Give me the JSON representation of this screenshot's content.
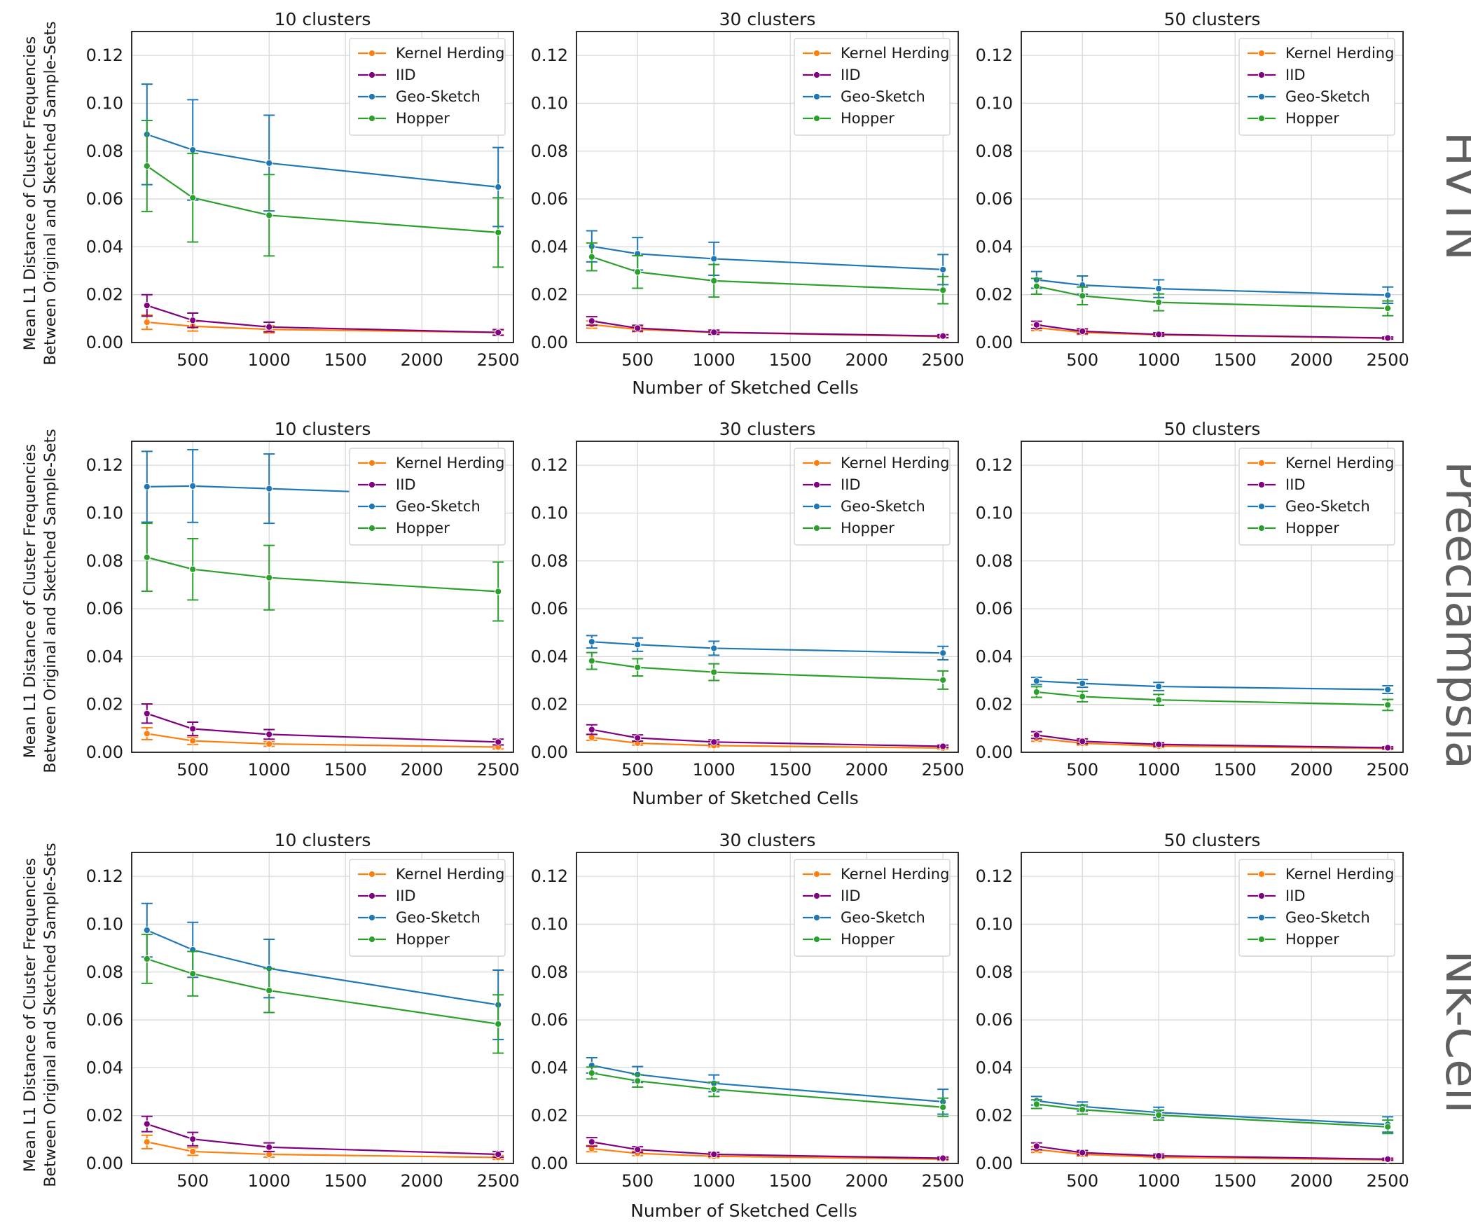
{
  "figure": {
    "y_axis_label_line1": "Mean L1 Distance of Cluster Frequencies",
    "y_axis_label_line2": "Between Original and Sketched Sample-Sets",
    "x_axis_label": "Number of Sketched Cells"
  },
  "colors": {
    "Kernel Herding": "#ff7f0e",
    "IID": "#800080",
    "Geo-Sketch": "#1f77b4",
    "Hopper": "#2ca02c"
  },
  "chart_data": [
    {
      "type": "line",
      "dataset": "HVTN",
      "title": "10 clusters",
      "x": [
        200,
        500,
        1000,
        2500
      ],
      "xticks": [
        500,
        1000,
        1500,
        2000,
        2500
      ],
      "xlim": [
        100,
        2600
      ],
      "ylim": [
        0,
        0.13
      ],
      "yticks": [
        0.0,
        0.02,
        0.04,
        0.06,
        0.08,
        0.1,
        0.12
      ],
      "legend": "top-right",
      "series": [
        {
          "name": "Kernel Herding",
          "values": [
            0.0085,
            0.0068,
            0.0055,
            0.0042
          ],
          "err": [
            0.003,
            0.002,
            0.0015,
            0.001
          ]
        },
        {
          "name": "IID",
          "values": [
            0.0155,
            0.0093,
            0.0065,
            0.0042
          ],
          "err": [
            0.0045,
            0.003,
            0.002,
            0.0012
          ]
        },
        {
          "name": "Geo-Sketch",
          "values": [
            0.087,
            0.0805,
            0.075,
            0.065
          ],
          "err": [
            0.021,
            0.021,
            0.02,
            0.0165
          ]
        },
        {
          "name": "Hopper",
          "values": [
            0.0738,
            0.0605,
            0.0532,
            0.046
          ],
          "err": [
            0.019,
            0.0185,
            0.017,
            0.0145
          ]
        }
      ]
    },
    {
      "type": "line",
      "dataset": "HVTN",
      "title": "30 clusters",
      "x": [
        200,
        500,
        1000,
        2500
      ],
      "xticks": [
        500,
        1000,
        1500,
        2000,
        2500
      ],
      "xlim": [
        100,
        2600
      ],
      "ylim": [
        0,
        0.13
      ],
      "yticks": [
        0.0,
        0.02,
        0.04,
        0.06,
        0.08,
        0.1,
        0.12
      ],
      "legend": "top-right",
      "series": [
        {
          "name": "Kernel Herding",
          "values": [
            0.0075,
            0.0055,
            0.0042,
            0.0025
          ],
          "err": [
            0.0015,
            0.001,
            0.0008,
            0.0006
          ]
        },
        {
          "name": "IID",
          "values": [
            0.009,
            0.006,
            0.0043,
            0.0027
          ],
          "err": [
            0.0018,
            0.0012,
            0.0009,
            0.0006
          ]
        },
        {
          "name": "Geo-Sketch",
          "values": [
            0.0402,
            0.0371,
            0.035,
            0.0305
          ],
          "err": [
            0.0065,
            0.0068,
            0.0069,
            0.0063
          ]
        },
        {
          "name": "Hopper",
          "values": [
            0.0358,
            0.0295,
            0.0258,
            0.0219
          ],
          "err": [
            0.0058,
            0.0068,
            0.0068,
            0.0057
          ]
        }
      ]
    },
    {
      "type": "line",
      "dataset": "HVTN",
      "title": "50 clusters",
      "x": [
        200,
        500,
        1000,
        2500
      ],
      "xticks": [
        500,
        1000,
        1500,
        2000,
        2500
      ],
      "xlim": [
        100,
        2600
      ],
      "ylim": [
        0,
        0.13
      ],
      "yticks": [
        0.0,
        0.02,
        0.04,
        0.06,
        0.08,
        0.1,
        0.12
      ],
      "legend": "top-right",
      "series": [
        {
          "name": "Kernel Herding",
          "values": [
            0.0062,
            0.0042,
            0.0032,
            0.0018
          ],
          "err": [
            0.0012,
            0.0008,
            0.0006,
            0.0004
          ]
        },
        {
          "name": "IID",
          "values": [
            0.0074,
            0.0047,
            0.0034,
            0.0019
          ],
          "err": [
            0.0015,
            0.001,
            0.0007,
            0.0004
          ]
        },
        {
          "name": "Geo-Sketch",
          "values": [
            0.0262,
            0.024,
            0.0225,
            0.0198
          ],
          "err": [
            0.0035,
            0.0038,
            0.0037,
            0.0034
          ]
        },
        {
          "name": "Hopper",
          "values": [
            0.0235,
            0.0195,
            0.0168,
            0.0143
          ],
          "err": [
            0.0033,
            0.0037,
            0.0035,
            0.0031
          ]
        }
      ]
    },
    {
      "type": "line",
      "dataset": "Preeclampsia",
      "title": "10 clusters",
      "x": [
        200,
        500,
        1000,
        2500
      ],
      "xticks": [
        500,
        1000,
        1500,
        2000,
        2500
      ],
      "xlim": [
        100,
        2600
      ],
      "ylim": [
        0,
        0.13
      ],
      "yticks": [
        0.0,
        0.02,
        0.04,
        0.06,
        0.08,
        0.1,
        0.12
      ],
      "legend": "top-right",
      "series": [
        {
          "name": "Kernel Herding",
          "values": [
            0.0078,
            0.0048,
            0.0035,
            0.0022
          ],
          "err": [
            0.0025,
            0.0015,
            0.001,
            0.0008
          ]
        },
        {
          "name": "IID",
          "values": [
            0.0162,
            0.0098,
            0.0075,
            0.0043
          ],
          "err": [
            0.004,
            0.0028,
            0.002,
            0.0012
          ]
        },
        {
          "name": "Geo-Sketch",
          "values": [
            0.111,
            0.1113,
            0.1102,
            0.1068
          ],
          "err": [
            0.0148,
            0.0152,
            0.0145,
            0.0128
          ]
        },
        {
          "name": "Hopper",
          "values": [
            0.0815,
            0.0765,
            0.073,
            0.0672
          ],
          "err": [
            0.0142,
            0.0128,
            0.0135,
            0.0123
          ]
        }
      ]
    },
    {
      "type": "line",
      "dataset": "Preeclampsia",
      "title": "30 clusters",
      "x": [
        200,
        500,
        1000,
        2500
      ],
      "xticks": [
        500,
        1000,
        1500,
        2000,
        2500
      ],
      "xlim": [
        100,
        2600
      ],
      "ylim": [
        0,
        0.13
      ],
      "yticks": [
        0.0,
        0.02,
        0.04,
        0.06,
        0.08,
        0.1,
        0.12
      ],
      "legend": "top-right",
      "series": [
        {
          "name": "Kernel Herding",
          "values": [
            0.0062,
            0.0038,
            0.0028,
            0.0018
          ],
          "err": [
            0.0012,
            0.0008,
            0.0006,
            0.0004
          ]
        },
        {
          "name": "IID",
          "values": [
            0.0095,
            0.006,
            0.0043,
            0.0025
          ],
          "err": [
            0.002,
            0.0013,
            0.0009,
            0.0005
          ]
        },
        {
          "name": "Geo-Sketch",
          "values": [
            0.0462,
            0.045,
            0.0435,
            0.0415
          ],
          "err": [
            0.0026,
            0.0028,
            0.0029,
            0.0028
          ]
        },
        {
          "name": "Hopper",
          "values": [
            0.0382,
            0.0355,
            0.0335,
            0.0302
          ],
          "err": [
            0.0035,
            0.0036,
            0.0035,
            0.0038
          ]
        }
      ]
    },
    {
      "type": "line",
      "dataset": "Preeclampsia",
      "title": "50 clusters",
      "x": [
        200,
        500,
        1000,
        2500
      ],
      "xticks": [
        500,
        1000,
        1500,
        2000,
        2500
      ],
      "xlim": [
        100,
        2600
      ],
      "ylim": [
        0,
        0.13
      ],
      "yticks": [
        0.0,
        0.02,
        0.04,
        0.06,
        0.08,
        0.1,
        0.12
      ],
      "legend": "top-right",
      "series": [
        {
          "name": "Kernel Herding",
          "values": [
            0.0058,
            0.0038,
            0.0026,
            0.0016
          ],
          "err": [
            0.0012,
            0.0008,
            0.0006,
            0.0004
          ]
        },
        {
          "name": "IID",
          "values": [
            0.0072,
            0.0046,
            0.0033,
            0.0019
          ],
          "err": [
            0.0014,
            0.001,
            0.0007,
            0.0004
          ]
        },
        {
          "name": "Geo-Sketch",
          "values": [
            0.0298,
            0.0288,
            0.0275,
            0.0262
          ],
          "err": [
            0.0015,
            0.0016,
            0.0017,
            0.0016
          ]
        },
        {
          "name": "Hopper",
          "values": [
            0.0252,
            0.0233,
            0.0219,
            0.0198
          ],
          "err": [
            0.0022,
            0.0022,
            0.0023,
            0.0023
          ]
        }
      ]
    },
    {
      "type": "line",
      "dataset": "NK-Cell",
      "title": "10 clusters",
      "x": [
        200,
        500,
        1000,
        2500
      ],
      "xticks": [
        500,
        1000,
        1500,
        2000,
        2500
      ],
      "xlim": [
        100,
        2600
      ],
      "ylim": [
        0,
        0.13
      ],
      "yticks": [
        0.0,
        0.02,
        0.04,
        0.06,
        0.08,
        0.1,
        0.12
      ],
      "legend": "top-right",
      "series": [
        {
          "name": "Kernel Herding",
          "values": [
            0.009,
            0.005,
            0.0038,
            0.0025
          ],
          "err": [
            0.0028,
            0.0016,
            0.0012,
            0.0008
          ]
        },
        {
          "name": "IID",
          "values": [
            0.0165,
            0.0102,
            0.0068,
            0.0038
          ],
          "err": [
            0.0032,
            0.0028,
            0.0018,
            0.0012
          ]
        },
        {
          "name": "Geo-Sketch",
          "values": [
            0.0975,
            0.0893,
            0.0815,
            0.0663
          ],
          "err": [
            0.0112,
            0.0115,
            0.0122,
            0.0145
          ]
        },
        {
          "name": "Hopper",
          "values": [
            0.0855,
            0.0793,
            0.0723,
            0.0583
          ],
          "err": [
            0.0102,
            0.0093,
            0.0092,
            0.0122
          ]
        }
      ]
    },
    {
      "type": "line",
      "dataset": "NK-Cell",
      "title": "30 clusters",
      "x": [
        200,
        500,
        1000,
        2500
      ],
      "xticks": [
        500,
        1000,
        1500,
        2000,
        2500
      ],
      "xlim": [
        100,
        2600
      ],
      "ylim": [
        0,
        0.13
      ],
      "yticks": [
        0.0,
        0.02,
        0.04,
        0.06,
        0.08,
        0.1,
        0.12
      ],
      "legend": "top-right",
      "series": [
        {
          "name": "Kernel Herding",
          "values": [
            0.0062,
            0.0042,
            0.003,
            0.0018
          ],
          "err": [
            0.0013,
            0.0009,
            0.0006,
            0.0004
          ]
        },
        {
          "name": "IID",
          "values": [
            0.009,
            0.0058,
            0.0038,
            0.0022
          ],
          "err": [
            0.0018,
            0.0012,
            0.0008,
            0.0005
          ]
        },
        {
          "name": "Geo-Sketch",
          "values": [
            0.041,
            0.0372,
            0.0335,
            0.0258
          ],
          "err": [
            0.0032,
            0.0033,
            0.0035,
            0.0052
          ]
        },
        {
          "name": "Hopper",
          "values": [
            0.0378,
            0.0345,
            0.031,
            0.0235
          ],
          "err": [
            0.0025,
            0.0026,
            0.003,
            0.0038
          ]
        }
      ]
    },
    {
      "type": "line",
      "dataset": "NK-Cell",
      "title": "50 clusters",
      "x": [
        200,
        500,
        1000,
        2500
      ],
      "xticks": [
        500,
        1000,
        1500,
        2000,
        2500
      ],
      "xlim": [
        100,
        2600
      ],
      "ylim": [
        0,
        0.13
      ],
      "yticks": [
        0.0,
        0.02,
        0.04,
        0.06,
        0.08,
        0.1,
        0.12
      ],
      "legend": "top-right",
      "series": [
        {
          "name": "Kernel Herding",
          "values": [
            0.0058,
            0.0038,
            0.0026,
            0.0015
          ],
          "err": [
            0.0012,
            0.0008,
            0.0005,
            0.0003
          ]
        },
        {
          "name": "IID",
          "values": [
            0.0072,
            0.0045,
            0.0032,
            0.0018
          ],
          "err": [
            0.0014,
            0.0009,
            0.0007,
            0.0004
          ]
        },
        {
          "name": "Geo-Sketch",
          "values": [
            0.0262,
            0.0238,
            0.0213,
            0.0163
          ],
          "err": [
            0.0018,
            0.0019,
            0.0022,
            0.0032
          ]
        },
        {
          "name": "Hopper",
          "values": [
            0.0248,
            0.0225,
            0.0202,
            0.0153
          ],
          "err": [
            0.0018,
            0.0019,
            0.0021,
            0.0028
          ]
        }
      ]
    }
  ]
}
